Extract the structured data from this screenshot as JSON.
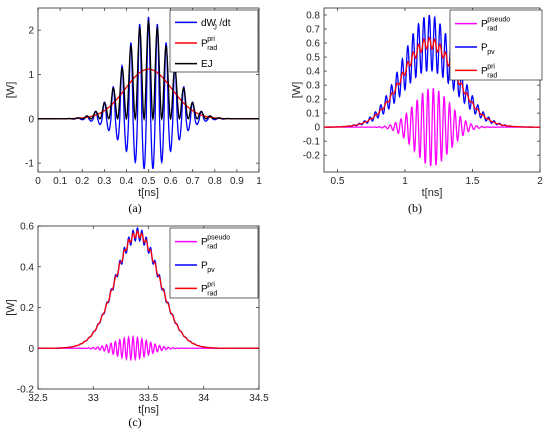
{
  "chart_data": [
    {
      "type": "line",
      "panel_label": "(a)",
      "xlabel": "t[ns]",
      "ylabel": "[W]",
      "xlim": [
        0,
        1
      ],
      "ylim": [
        -1.2,
        2.5
      ],
      "xticks": [
        "0",
        "0.1",
        "0.2",
        "0.3",
        "0.4",
        "0.5",
        "0.6",
        "0.7",
        "0.8",
        "0.9",
        "1"
      ],
      "yticks": [
        "-1",
        "0",
        "1",
        "2"
      ],
      "legend_position": "top-right",
      "series": [
        {
          "name": "dW_J/dt",
          "legend_main": "dW",
          "legend_sub": "J",
          "legend_tail": "/dt",
          "color": "#0000ff",
          "model": {
            "kind": "oscillating",
            "center": 0.5,
            "sigma": 0.105,
            "period": 0.04,
            "envelope_pos": 2.3,
            "envelope_neg": 1.15
          }
        },
        {
          "name": "P_rad^pri",
          "legend_main": "P",
          "legend_sup": "pri",
          "legend_sub": "rad",
          "color": "#ff0000",
          "model": {
            "kind": "gaussian",
            "center": 0.5,
            "sigma": 0.105,
            "peak": 1.12
          }
        },
        {
          "name": "EJ",
          "legend_main": "EJ",
          "color": "#000000",
          "model": {
            "kind": "oscillating_positive",
            "center": 0.5,
            "sigma": 0.105,
            "period": 0.04,
            "peak": 2.2
          }
        }
      ]
    },
    {
      "type": "line",
      "panel_label": "(b)",
      "xlabel": "t[ns]",
      "ylabel": "[W]",
      "xlim": [
        0.4,
        2.0
      ],
      "ylim": [
        -0.32,
        0.85
      ],
      "xticks": [
        "0.5",
        "1",
        "1.5",
        "2"
      ],
      "yticks": [
        "-0.2",
        "-0.1",
        "0",
        "0.1",
        "0.2",
        "0.3",
        "0.4",
        "0.5",
        "0.6",
        "0.7",
        "0.8"
      ],
      "legend_position": "top-right",
      "series": [
        {
          "name": "P_rad^pseudo",
          "legend_main": "P",
          "legend_sup": "pseudo",
          "legend_sub": "rad",
          "color": "#ff00ff",
          "model": {
            "kind": "oscillating_sym",
            "center": 1.2,
            "sigma": 0.13,
            "period": 0.04,
            "amp": 0.28
          }
        },
        {
          "name": "P_pv",
          "legend_main": "P",
          "legend_sub": "pv",
          "color": "#0000ff",
          "model": {
            "kind": "gaussian_ripple",
            "center": 1.18,
            "sigma": 0.2,
            "peak": 0.6,
            "period": 0.04,
            "ripple": 0.2
          }
        },
        {
          "name": "P_rad^pri",
          "legend_main": "P",
          "legend_sup": "pri",
          "legend_sub": "rad",
          "color": "#ff0000",
          "model": {
            "kind": "gaussian_ripple",
            "center": 1.18,
            "sigma": 0.2,
            "peak": 0.6,
            "period": 0.04,
            "ripple": 0.04
          }
        }
      ]
    },
    {
      "type": "line",
      "panel_label": "(c)",
      "xlabel": "t[ns]",
      "ylabel": "[W]",
      "xlim": [
        32.5,
        34.5
      ],
      "ylim": [
        -0.2,
        0.6
      ],
      "xticks": [
        "32.5",
        "33",
        "33.5",
        "34",
        "34.5"
      ],
      "yticks": [
        "-0.2",
        "0",
        "0.2",
        "0.4",
        "0.6"
      ],
      "legend_position": "top-right",
      "series": [
        {
          "name": "P_rad^pseudo",
          "legend_main": "P",
          "legend_sup": "pseudo",
          "legend_sub": "rad",
          "color": "#ff00ff",
          "model": {
            "kind": "oscillating_sym",
            "center": 33.35,
            "sigma": 0.15,
            "period": 0.04,
            "amp": 0.055
          }
        },
        {
          "name": "P_pv",
          "legend_main": "P",
          "legend_sub": "pv",
          "color": "#0000ff",
          "model": {
            "kind": "gaussian_ripple",
            "center": 33.4,
            "sigma": 0.2,
            "peak": 0.56,
            "period": 0.04,
            "ripple": 0.03
          }
        },
        {
          "name": "P_rad^pri",
          "legend_main": "P",
          "legend_sup": "pri",
          "legend_sub": "rad",
          "color": "#ff0000",
          "model": {
            "kind": "gaussian_ripple",
            "center": 33.4,
            "sigma": 0.2,
            "peak": 0.56,
            "period": 0.04,
            "ripple": 0.015
          }
        }
      ]
    }
  ]
}
